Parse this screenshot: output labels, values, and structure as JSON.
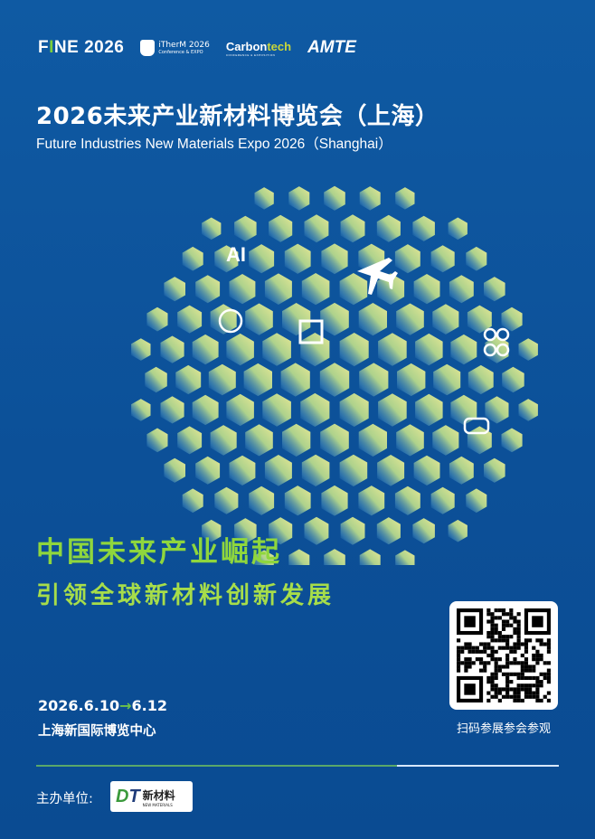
{
  "logos": {
    "fine": {
      "pre": "F",
      "i": "I",
      "post": "NE 2026"
    },
    "itherm": {
      "title": "iTherM 2026",
      "subtitle": "Conference & EXPO"
    },
    "carbontech": {
      "carbon": "Carbon",
      "tech": "tech",
      "subtitle": "CONFERENCE & EXPOSITION"
    },
    "amte": "AMTE"
  },
  "title_cn": "2026未来产业新材料博览会（上海）",
  "title_en": "Future Industries New Materials Expo 2026（Shanghai）",
  "globe": {
    "icons": [
      "ai-icon",
      "airplane-icon",
      "brain-icon",
      "chip-icon",
      "drone-icon",
      "car-icon"
    ],
    "ai_text": "AI"
  },
  "headline1": "中国未来产业崛起",
  "headline2": "引领全球新材料创新发展",
  "date": {
    "start": "2026.6.10",
    "arrow": "→",
    "end": "6.12"
  },
  "venue": "上海新国际博览中心",
  "qr_caption": "扫码参展参会参观",
  "organizer": {
    "label": "主办单位:",
    "logo_d": "D",
    "logo_t": "T",
    "logo_cn": "新材料",
    "logo_en": "NEW MATERIALS"
  },
  "colors": {
    "background": "#0c5098",
    "accent_green": "#8fd63d",
    "hex_light": "#d9e49a"
  }
}
